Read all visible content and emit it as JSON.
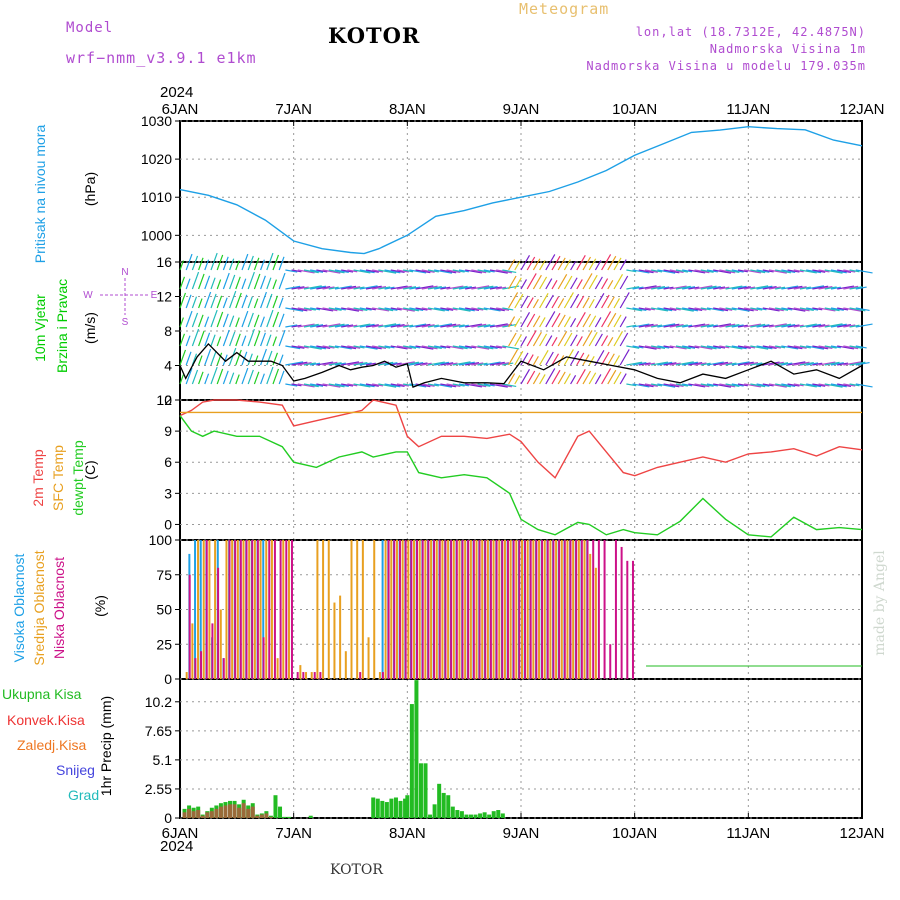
{
  "header": {
    "model_label": "Model",
    "model_name": "wrf−nmm_v3.9.1  e1km",
    "city": "KOTOR",
    "meteogram": "Meteogram",
    "lonlat": "lon,lat (18.7312E, 42.4875N)",
    "elevation": "Nadmorska Visina 1m",
    "model_elevation": "Nadmorska Visina u modelu 179.035m",
    "year_top": "2024",
    "year_bottom": "2024",
    "footer_city": "KOTOR",
    "watermark": "made by Angel"
  },
  "colors": {
    "pressure": "#1ea0e6",
    "wind_speed": "#00cc00",
    "temp2m": "#ee4444",
    "sfc_temp": "#e8a020",
    "dewpoint": "#22cc22",
    "cloud_high": "#1ea0e6",
    "cloud_mid": "#e8a020",
    "cloud_low": "#cc1188",
    "precip_total": "#22bb22",
    "precip_conv": "#ee3333",
    "precip_frozen": "#ee7722",
    "snow": "#4444dd",
    "graupel": "#22bbbb",
    "compass": "#b04cd0",
    "model_text": "#b04cd0"
  },
  "chart_data": [
    {
      "type": "line",
      "panel": "pressure",
      "ylabel": "Pritisak na nivou mora",
      "unit": "(hPa)",
      "ylim": [
        993,
        1030
      ],
      "yticks": [
        "1000",
        "1010",
        "1020",
        "1030"
      ],
      "xlim": [
        0,
        6
      ],
      "x_tick_labels": [
        "6JAN",
        "7JAN",
        "8JAN",
        "9JAN",
        "10JAN",
        "11JAN",
        "12JAN"
      ],
      "x": [
        0,
        0.25,
        0.5,
        0.75,
        1.0,
        1.25,
        1.5,
        1.62,
        1.75,
        2.0,
        2.25,
        2.5,
        2.75,
        3.0,
        3.25,
        3.5,
        3.75,
        4.0,
        4.25,
        4.5,
        4.75,
        5.0,
        5.25,
        5.5,
        5.75,
        6.0
      ],
      "y": [
        1012,
        1010.5,
        1008,
        1004,
        998.5,
        996.5,
        995.5,
        995.2,
        996.5,
        1000,
        1005,
        1006.5,
        1008.5,
        1010,
        1011.5,
        1014,
        1017,
        1021,
        1024,
        1027,
        1027.6,
        1028.5,
        1028,
        1027.7,
        1025,
        1023.5
      ]
    },
    {
      "type": "wind",
      "panel": "wind",
      "ylabel1": "10m Vjetar",
      "ylabel2": "Brzina i Pravac",
      "unit": "(m/s)",
      "ylim": [
        0,
        16
      ],
      "yticks": [
        "0",
        "4",
        "8",
        "12",
        "16"
      ],
      "compass": [
        "N",
        "S",
        "W",
        "E"
      ],
      "x": [
        0,
        0.05,
        0.15,
        0.25,
        0.4,
        0.5,
        0.6,
        0.7,
        0.8,
        0.9,
        1.0,
        1.1,
        1.25,
        1.4,
        1.5,
        1.6,
        1.7,
        1.8,
        1.9,
        2.0,
        2.05,
        2.15,
        2.3,
        2.5,
        2.7,
        2.85,
        3.0,
        3.2,
        3.4,
        3.6,
        3.8,
        4.0,
        4.2,
        4.4,
        4.6,
        4.8,
        5.0,
        5.2,
        5.4,
        5.6,
        5.8,
        6.0
      ],
      "speed": [
        4,
        2.5,
        5,
        6.5,
        4.5,
        5.5,
        4.5,
        4.5,
        4.5,
        4.0,
        2.2,
        2.5,
        3.2,
        4.0,
        3.5,
        3.8,
        4.0,
        4.5,
        3.8,
        4.2,
        1.5,
        2.0,
        2.5,
        2.0,
        2.0,
        1.9,
        4.5,
        3.5,
        5.0,
        4.5,
        4.0,
        3.5,
        2.5,
        2.0,
        3.0,
        2.5,
        3.5,
        4.5,
        3.0,
        3.5,
        2.5,
        4.0
      ]
    },
    {
      "type": "line",
      "panel": "temperature",
      "series_labels": [
        "2m Temp",
        "SFC Temp",
        "dewpt Temp"
      ],
      "unit": "(C)",
      "ylim": [
        -1.5,
        12
      ],
      "yticks": [
        "0",
        "3",
        "6",
        "9",
        "12"
      ],
      "x": [
        0,
        0.1,
        0.2,
        0.3,
        0.5,
        0.7,
        0.9,
        1.0,
        1.2,
        1.4,
        1.6,
        1.7,
        1.9,
        2.0,
        2.1,
        2.3,
        2.5,
        2.7,
        2.9,
        3.0,
        3.15,
        3.3,
        3.5,
        3.6,
        3.75,
        3.9,
        4.0,
        4.2,
        4.4,
        4.6,
        4.8,
        5.0,
        5.2,
        5.4,
        5.6,
        5.8,
        6.0
      ],
      "series": [
        {
          "name": "2m Temp",
          "values": [
            10.5,
            11,
            11.8,
            12,
            12,
            11.8,
            11.5,
            9.5,
            10,
            10.5,
            11,
            12,
            11.5,
            8.5,
            7.5,
            8.5,
            8.5,
            8.3,
            8.7,
            8.0,
            6.0,
            4.5,
            8.5,
            9.0,
            7.0,
            5.0,
            4.7,
            5.5,
            6.0,
            6.5,
            6.0,
            6.8,
            7.0,
            7.3,
            6.6,
            7.5,
            7.2
          ]
        },
        {
          "name": "SFC Temp",
          "values": [
            10.8,
            10.8,
            10.8,
            10.8,
            10.8,
            10.8,
            10.8,
            10.8,
            10.8,
            10.8,
            10.8,
            10.8,
            10.8,
            10.8,
            10.8,
            10.8,
            10.8,
            10.8,
            10.8,
            10.8,
            10.8,
            10.8,
            10.8,
            10.8,
            10.8,
            10.8,
            10.8,
            10.8,
            10.8,
            10.8,
            10.8,
            10.8,
            10.8,
            10.8,
            10.8,
            10.8,
            10.8
          ]
        },
        {
          "name": "dewpt Temp",
          "values": [
            10.5,
            9.0,
            8.5,
            9.0,
            8.5,
            8.5,
            7.5,
            6.0,
            5.5,
            6.5,
            7.0,
            6.5,
            7.0,
            7.0,
            5.0,
            4.5,
            4.8,
            4.5,
            3.0,
            0.5,
            -0.5,
            -1.0,
            0.2,
            0.0,
            -1.0,
            -0.5,
            -0.8,
            -1.0,
            0.3,
            2.5,
            0.5,
            -1.0,
            -1.2,
            0.7,
            -0.5,
            -0.3,
            -0.5
          ]
        }
      ]
    },
    {
      "type": "bar",
      "panel": "clouds",
      "series_labels": [
        "Visoka Oblacnost",
        "Srednja Oblacnost",
        "Niska Oblacnost"
      ],
      "unit": "(%)",
      "ylim": [
        0,
        100
      ],
      "yticks": [
        "0",
        "25",
        "50",
        "75",
        "100"
      ],
      "x": [
        0.05,
        0.1,
        0.15,
        0.2,
        0.25,
        0.3,
        0.35,
        0.4,
        0.45,
        0.5,
        0.55,
        0.6,
        0.65,
        0.7,
        0.75,
        0.8,
        0.85,
        0.9,
        0.95,
        1.0,
        1.05,
        1.1,
        1.15,
        1.2,
        1.25,
        1.3,
        1.35,
        1.4,
        1.45,
        1.5,
        1.55,
        1.6,
        1.65,
        1.7,
        1.75,
        1.8,
        1.85,
        1.9,
        1.95,
        2.0,
        2.05,
        2.1,
        2.15,
        2.2,
        2.25,
        2.3,
        2.35,
        2.4,
        2.45,
        2.5,
        2.55,
        2.6,
        2.65,
        2.7,
        2.75,
        2.8,
        2.85,
        2.9,
        2.95,
        3.0,
        3.05,
        3.1,
        3.15,
        3.2,
        3.25,
        3.3,
        3.35,
        3.4,
        3.45,
        3.5,
        3.55,
        3.6,
        3.65,
        3.7,
        3.75,
        3.8,
        3.85,
        3.9,
        3.95,
        4.0,
        4.05
      ],
      "series": [
        {
          "name": "Visoka Oblacnost",
          "values": [
            0,
            90,
            100,
            100,
            100,
            30,
            100,
            15,
            100,
            100,
            100,
            100,
            100,
            100,
            100,
            0,
            0,
            0,
            0,
            0,
            0,
            0,
            0,
            0,
            0,
            0,
            0,
            0,
            0,
            0,
            0,
            0,
            0,
            0,
            0,
            100,
            100,
            100,
            100,
            100,
            100,
            100,
            100,
            100,
            100,
            100,
            100,
            100,
            100,
            100,
            100,
            100,
            100,
            100,
            100,
            100,
            100,
            100,
            100,
            100,
            100,
            100,
            100,
            100,
            100,
            100,
            100,
            100,
            100,
            100,
            100,
            100,
            0,
            0,
            0,
            0,
            0,
            0,
            0,
            0,
            0
          ]
        },
        {
          "name": "Srednja Oblacnost",
          "values": [
            5,
            40,
            100,
            100,
            100,
            100,
            50,
            100,
            100,
            100,
            100,
            100,
            100,
            100,
            100,
            100,
            15,
            100,
            100,
            0,
            10,
            5,
            5,
            100,
            100,
            100,
            55,
            60,
            20,
            100,
            100,
            100,
            30,
            100,
            5,
            100,
            100,
            100,
            100,
            100,
            100,
            100,
            100,
            100,
            100,
            100,
            100,
            100,
            100,
            100,
            100,
            100,
            100,
            100,
            100,
            100,
            100,
            100,
            100,
            100,
            100,
            100,
            100,
            100,
            100,
            100,
            100,
            100,
            100,
            100,
            100,
            90,
            80,
            0,
            0,
            0,
            0,
            0,
            0,
            0,
            0
          ]
        },
        {
          "name": "Niska Oblacnost",
          "values": [
            75,
            15,
            20,
            100,
            40,
            80,
            15,
            100,
            100,
            100,
            100,
            100,
            100,
            30,
            100,
            100,
            100,
            100,
            100,
            5,
            5,
            0,
            5,
            5,
            0,
            0,
            0,
            0,
            0,
            0,
            5,
            0,
            0,
            0,
            5,
            100,
            100,
            100,
            100,
            100,
            100,
            100,
            100,
            100,
            100,
            100,
            100,
            100,
            100,
            100,
            100,
            100,
            100,
            100,
            100,
            100,
            100,
            100,
            100,
            100,
            100,
            100,
            100,
            100,
            100,
            100,
            100,
            100,
            100,
            100,
            100,
            100,
            100,
            100,
            25,
            100,
            95,
            85,
            85,
            0,
            0
          ]
        }
      ]
    },
    {
      "type": "bar",
      "panel": "precip",
      "series_labels": [
        "Ukupna Kisa",
        "Konvek.Kisa",
        "Zaledj.Kisa",
        "Snijeg",
        "Grad"
      ],
      "ylabel": "1hr Precip (mm)",
      "ylim": [
        0,
        12.2
      ],
      "yticks": [
        "0",
        "2.55",
        "5.1",
        "7.65",
        "10.2"
      ],
      "x": [
        0.04,
        0.08,
        0.12,
        0.16,
        0.2,
        0.24,
        0.28,
        0.32,
        0.36,
        0.4,
        0.44,
        0.48,
        0.52,
        0.56,
        0.6,
        0.64,
        0.68,
        0.72,
        0.76,
        0.8,
        0.84,
        0.88,
        0.92,
        0.96,
        1.15,
        1.7,
        1.74,
        1.78,
        1.82,
        1.86,
        1.9,
        1.94,
        1.98,
        2.0,
        2.04,
        2.08,
        2.12,
        2.16,
        2.2,
        2.24,
        2.28,
        2.32,
        2.36,
        2.4,
        2.44,
        2.48,
        2.52,
        2.56,
        2.6,
        2.64,
        2.68,
        2.72,
        2.76,
        2.8,
        2.84
      ],
      "series": [
        {
          "name": "Ukupna Kisa",
          "values": [
            0.8,
            1.1,
            0.9,
            1.0,
            0.3,
            0.6,
            0.9,
            1.1,
            1.3,
            1.4,
            1.5,
            1.5,
            1.2,
            1.6,
            1.1,
            1.3,
            0.3,
            0.4,
            0.6,
            0.2,
            2.0,
            1.0,
            0.1,
            0.1,
            0.2,
            1.8,
            1.7,
            1.5,
            1.4,
            1.7,
            1.8,
            1.5,
            1.7,
            2.0,
            10.0,
            12.1,
            4.8,
            4.8,
            0.3,
            1.2,
            3.0,
            2.2,
            2.0,
            1.0,
            0.7,
            0.6,
            0.3,
            0.3,
            0.3,
            0.4,
            0.5,
            0.3,
            0.6,
            0.7,
            0.4
          ]
        },
        {
          "name": "Konvek.Kisa",
          "values": [
            0.5,
            0.8,
            0.6,
            0.7,
            0.2,
            0.5,
            0.6,
            0.8,
            1.0,
            1.1,
            1.2,
            1.2,
            0.9,
            1.3,
            0.8,
            1.0,
            0.2,
            0.3,
            0.4,
            0.1,
            0,
            0,
            0,
            0,
            0,
            0,
            0,
            0,
            0,
            0,
            0,
            0,
            0,
            0,
            0,
            0,
            0,
            0,
            0,
            0,
            0,
            0,
            0,
            0,
            0,
            0,
            0,
            0,
            0,
            0,
            0,
            0,
            0,
            0,
            0
          ]
        }
      ]
    }
  ]
}
